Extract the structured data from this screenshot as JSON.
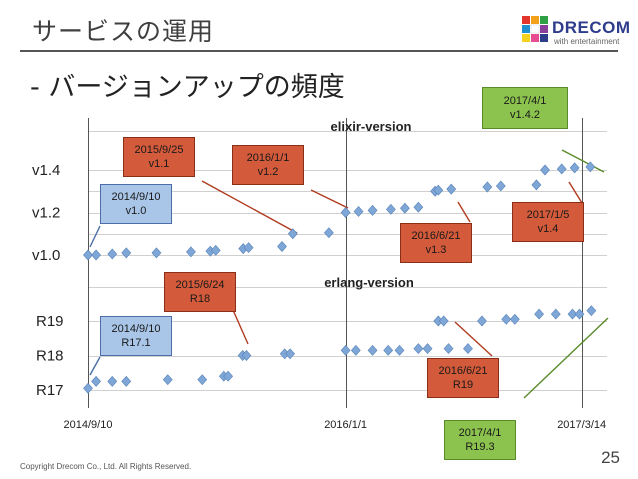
{
  "slide": {
    "title": "サービスの運用",
    "bullet": "-  バージョンアップの頻度",
    "footer": "Copyright Drecom Co., Ltd. All Rights Reserved.",
    "page_number": "25",
    "logo_name": "DRECOM",
    "logo_sub": "with entertainment"
  },
  "chart_data": [
    {
      "type": "scatter",
      "title": "elixir-version",
      "x_axis": {
        "range": [
          "2014-09-10",
          "2017-04-30"
        ],
        "ticks": [
          "2014/9/10",
          "2016/1/1",
          "2017/3/14"
        ]
      },
      "y_ticks": [
        "v1.0",
        "v1.2",
        "v1.4"
      ],
      "y_range": [
        1.0,
        1.45
      ],
      "color": "#7ea6d6",
      "points": [
        [
          "2014-09-10",
          1.0
        ],
        [
          "2014-09-25",
          1.0
        ],
        [
          "2014-10-25",
          1.005
        ],
        [
          "2014-11-20",
          1.01
        ],
        [
          "2015-01-15",
          1.01
        ],
        [
          "2015-03-20",
          1.015
        ],
        [
          "2015-04-25",
          1.018
        ],
        [
          "2015-05-05",
          1.022
        ],
        [
          "2015-06-25",
          1.03
        ],
        [
          "2015-07-05",
          1.035
        ],
        [
          "2015-09-05",
          1.04
        ],
        [
          "2015-09-25",
          1.1
        ],
        [
          "2015-12-01",
          1.105
        ],
        [
          "2016-01-01",
          1.2
        ],
        [
          "2016-01-25",
          1.205
        ],
        [
          "2016-02-20",
          1.21
        ],
        [
          "2016-03-25",
          1.215
        ],
        [
          "2016-04-20",
          1.22
        ],
        [
          "2016-05-15",
          1.225
        ],
        [
          "2016-06-15",
          1.3
        ],
        [
          "2016-06-21",
          1.305
        ],
        [
          "2016-07-15",
          1.31
        ],
        [
          "2016-09-20",
          1.32
        ],
        [
          "2016-10-15",
          1.325
        ],
        [
          "2016-12-20",
          1.33
        ],
        [
          "2017-01-05",
          1.4
        ],
        [
          "2017-02-05",
          1.405
        ],
        [
          "2017-03-01",
          1.41
        ],
        [
          "2017-03-30",
          1.415
        ]
      ]
    },
    {
      "type": "scatter",
      "title": "erlang-version",
      "x_axis": {
        "range": [
          "2014-09-10",
          "2017-04-30"
        ],
        "ticks": [
          "2014/9/10",
          "2016/1/1",
          "2017/3/14"
        ]
      },
      "y_ticks": [
        "R17",
        "R18",
        "R19"
      ],
      "y_range": [
        17.0,
        19.5
      ],
      "color": "#7ea6d6",
      "points": [
        [
          "2014-09-10",
          17.05
        ],
        [
          "2014-09-25",
          17.25
        ],
        [
          "2014-10-25",
          17.25
        ],
        [
          "2014-11-20",
          17.25
        ],
        [
          "2015-02-05",
          17.3
        ],
        [
          "2015-04-10",
          17.3
        ],
        [
          "2015-05-20",
          17.4
        ],
        [
          "2015-05-28",
          17.4
        ],
        [
          "2015-06-24",
          18.0
        ],
        [
          "2015-07-01",
          18.0
        ],
        [
          "2015-09-10",
          18.05
        ],
        [
          "2015-09-20",
          18.05
        ],
        [
          "2016-01-01",
          18.15
        ],
        [
          "2016-01-20",
          18.15
        ],
        [
          "2016-02-20",
          18.15
        ],
        [
          "2016-03-20",
          18.15
        ],
        [
          "2016-04-10",
          18.15
        ],
        [
          "2016-05-15",
          18.2
        ],
        [
          "2016-06-01",
          18.2
        ],
        [
          "2016-07-10",
          18.2
        ],
        [
          "2016-08-15",
          18.2
        ],
        [
          "2016-06-21",
          19.0
        ],
        [
          "2016-07-01",
          19.0
        ],
        [
          "2016-09-10",
          19.0
        ],
        [
          "2016-10-25",
          19.05
        ],
        [
          "2016-11-10",
          19.05
        ],
        [
          "2016-12-25",
          19.2
        ],
        [
          "2017-01-25",
          19.2
        ],
        [
          "2017-02-25",
          19.2
        ],
        [
          "2017-03-10",
          19.2
        ],
        [
          "2017-04-01",
          19.3
        ]
      ]
    }
  ],
  "callouts": [
    {
      "id": "c1",
      "style": "blue",
      "lines": [
        "2014/9/10",
        "v1.0"
      ]
    },
    {
      "id": "c2",
      "style": "red",
      "lines": [
        "2015/9/25",
        "v1.1"
      ]
    },
    {
      "id": "c3",
      "style": "red",
      "lines": [
        "2016/1/1",
        "v1.2"
      ]
    },
    {
      "id": "c4",
      "style": "red",
      "lines": [
        "2016/6/21",
        "v1.3"
      ]
    },
    {
      "id": "c5",
      "style": "red",
      "lines": [
        "2017/1/5",
        "v1.4"
      ]
    },
    {
      "id": "c6",
      "style": "green",
      "lines": [
        "2017/4/1",
        "v1.4.2"
      ]
    },
    {
      "id": "c7",
      "style": "red",
      "lines": [
        "2015/6/24",
        "R18"
      ]
    },
    {
      "id": "c8",
      "style": "blue",
      "lines": [
        "2014/9/10",
        "R17.1"
      ]
    },
    {
      "id": "c9",
      "style": "red",
      "lines": [
        "2016/6/21",
        "R19"
      ]
    },
    {
      "id": "c10",
      "style": "green",
      "lines": [
        "2017/4/1",
        "R19.3"
      ]
    }
  ]
}
